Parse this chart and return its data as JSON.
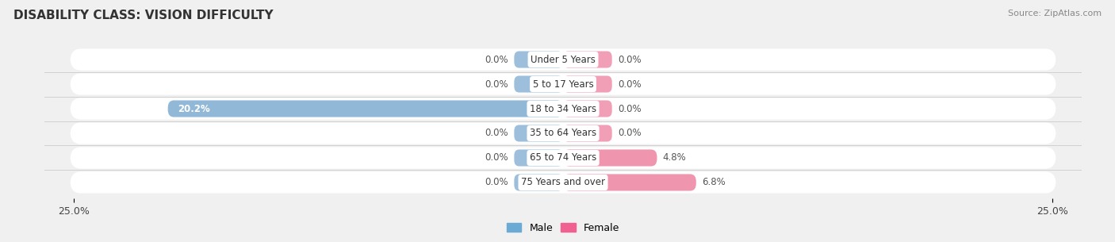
{
  "title": "DISABILITY CLASS: VISION DIFFICULTY",
  "source": "Source: ZipAtlas.com",
  "categories": [
    "Under 5 Years",
    "5 to 17 Years",
    "18 to 34 Years",
    "35 to 64 Years",
    "65 to 74 Years",
    "75 Years and over"
  ],
  "male_values": [
    0.0,
    0.0,
    20.2,
    0.0,
    0.0,
    0.0
  ],
  "female_values": [
    0.0,
    0.0,
    0.0,
    0.0,
    4.8,
    6.8
  ],
  "male_color": "#92b8d8",
  "female_color": "#f095ae",
  "male_color_legend": "#6aaad4",
  "female_color_legend": "#f06090",
  "x_min": -25.0,
  "x_max": 25.0,
  "stub_size": 2.5,
  "bar_height": 0.68,
  "row_bg_color": "#ffffff",
  "fig_bg_color": "#f0f0f0",
  "title_fontsize": 11,
  "label_fontsize": 8.5,
  "value_fontsize": 8.5,
  "axis_fontsize": 9,
  "source_fontsize": 8
}
